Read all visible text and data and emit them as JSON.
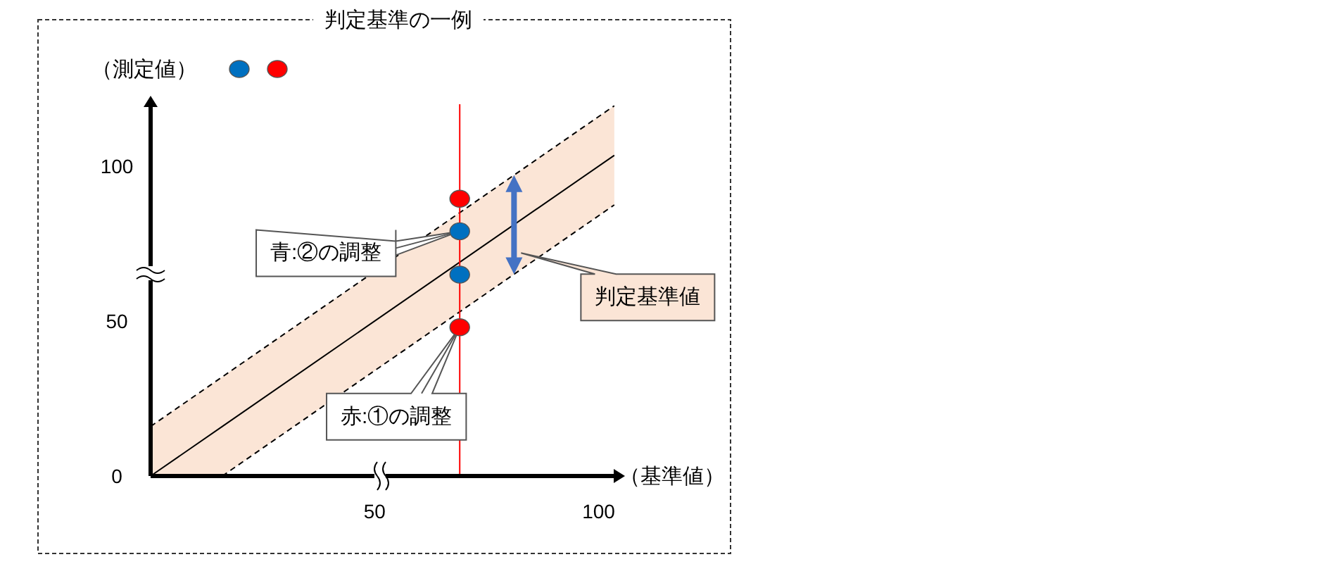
{
  "chart_data": {
    "type": "scatter",
    "title": "判定基準の一例",
    "xlabel": "（基準値）",
    "legend_title": "（測定値）",
    "xlim": [
      0,
      104
    ],
    "ylim": [
      0,
      120
    ],
    "xticks": [
      50,
      100
    ],
    "yticks": [
      0,
      50,
      100
    ],
    "series": [
      {
        "type": "line",
        "color": "#000000",
        "line_style": "solid",
        "x": [
          0,
          16,
          103.5
        ],
        "values": [
          0,
          16,
          103.5
        ],
        "lower": [
          0,
          0,
          87.5
        ],
        "upper": [
          16,
          32,
          119.5
        ]
      },
      {
        "type": "line",
        "color": "#000000",
        "line_style": "dashed",
        "x": [
          0,
          103.5
        ],
        "values": [
          16,
          119.5
        ]
      },
      {
        "type": "line",
        "color": "#000000",
        "line_style": "dashed",
        "x": [
          16,
          103.5
        ],
        "values": [
          0,
          87.5
        ]
      },
      {
        "type": "scatter",
        "marker": "circle",
        "color": "#0070c0",
        "x": [
          69,
          69
        ],
        "values": [
          79,
          65
        ]
      },
      {
        "type": "scatter",
        "marker": "circle",
        "color": "#ff0000",
        "x": [
          69,
          69
        ],
        "values": [
          89.5,
          48
        ]
      }
    ],
    "ref_lines": [
      {
        "axis": "x",
        "value": 69,
        "color": "#ff0000"
      }
    ],
    "annotations": [
      {
        "text": "青:②の調整",
        "x": 69,
        "y": 79
      },
      {
        "text": "赤:①の調整",
        "x": 69,
        "y": 48
      },
      "判定基準値"
    ]
  }
}
